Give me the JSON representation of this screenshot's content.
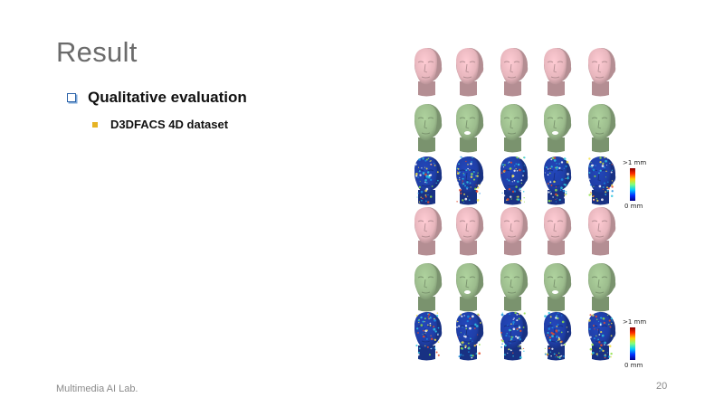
{
  "slide": {
    "title": "Result",
    "bullet_level1": "Qualitative evaluation",
    "bullet_level2": "D3DFACS 4D dataset",
    "footer": "Multimedia AI Lab.",
    "page_number": "20"
  },
  "figure": {
    "rows": [
      {
        "kind": "target-mesh",
        "color": "#e7b6bd"
      },
      {
        "kind": "reconstruction",
        "color": "#9cbc8d"
      },
      {
        "kind": "error-map",
        "color": "#1f3fa8"
      },
      {
        "kind": "target-mesh",
        "color": "#e7b6bd"
      },
      {
        "kind": "reconstruction",
        "color": "#9cbc8d"
      },
      {
        "kind": "error-map",
        "color": "#1f3fa8"
      }
    ],
    "colorbar_top_label": ">1 mm",
    "colorbar_bottom_label": "0 mm"
  }
}
